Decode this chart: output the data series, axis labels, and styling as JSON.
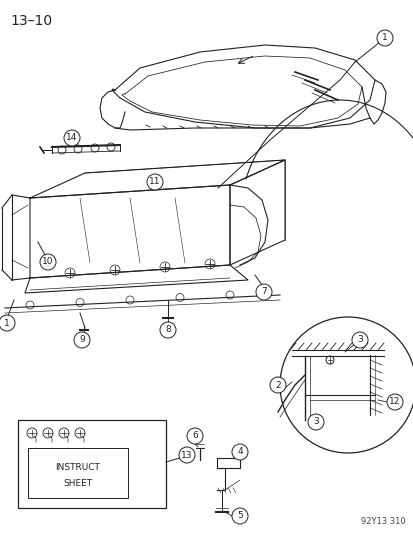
{
  "title": "13–10",
  "footer": "92Y13 310",
  "background_color": "#ffffff",
  "fig_width": 4.14,
  "fig_height": 5.33,
  "dpi": 100,
  "line_color": "#222222",
  "callout_circle_r": 8
}
